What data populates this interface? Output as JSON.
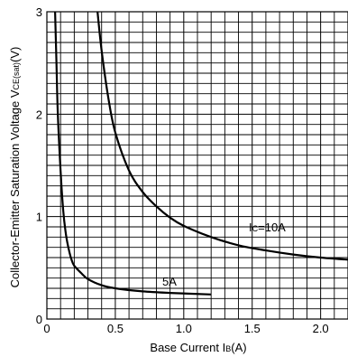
{
  "chart_data": {
    "type": "line",
    "xlabel": "Base Current I",
    "xlabel_sub": "B",
    "xlabel_unit": "(A)",
    "ylabel": "Collector-Emitter Saturation Voltage V",
    "ylabel_sub": "CE(sat)",
    "ylabel_unit": "(V)",
    "xlim": [
      0,
      2.2
    ],
    "ylim": [
      0,
      3
    ],
    "grid": true,
    "x_ticks": [
      {
        "value": 0,
        "label": "0"
      },
      {
        "value": 0.5,
        "label": "0.5"
      },
      {
        "value": 1.0,
        "label": "1.0"
      },
      {
        "value": 1.5,
        "label": "1.5"
      },
      {
        "value": 2.0,
        "label": "2.0"
      }
    ],
    "y_ticks": [
      {
        "value": 0,
        "label": "0"
      },
      {
        "value": 1,
        "label": "1"
      },
      {
        "value": 2,
        "label": "2"
      },
      {
        "value": 3,
        "label": "3"
      }
    ],
    "series": [
      {
        "name": "5A",
        "x": [
          0.06,
          0.07,
          0.08,
          0.1,
          0.12,
          0.14,
          0.16,
          0.18,
          0.2,
          0.25,
          0.3,
          0.4,
          0.5,
          0.7,
          0.9,
          1.2
        ],
        "y": [
          3.0,
          2.5,
          2.0,
          1.45,
          1.05,
          0.82,
          0.68,
          0.58,
          0.52,
          0.45,
          0.39,
          0.33,
          0.3,
          0.27,
          0.255,
          0.24
        ]
      },
      {
        "name": "10A",
        "prefix": "I",
        "sub": "C",
        "suffix": "=10A",
        "x": [
          0.37,
          0.4,
          0.45,
          0.5,
          0.6,
          0.7,
          0.8,
          0.9,
          1.0,
          1.2,
          1.4,
          1.6,
          1.8,
          2.0,
          2.2
        ],
        "y": [
          3.0,
          2.62,
          2.15,
          1.82,
          1.45,
          1.24,
          1.1,
          0.99,
          0.91,
          0.8,
          0.72,
          0.67,
          0.63,
          0.6,
          0.58
        ]
      }
    ]
  }
}
